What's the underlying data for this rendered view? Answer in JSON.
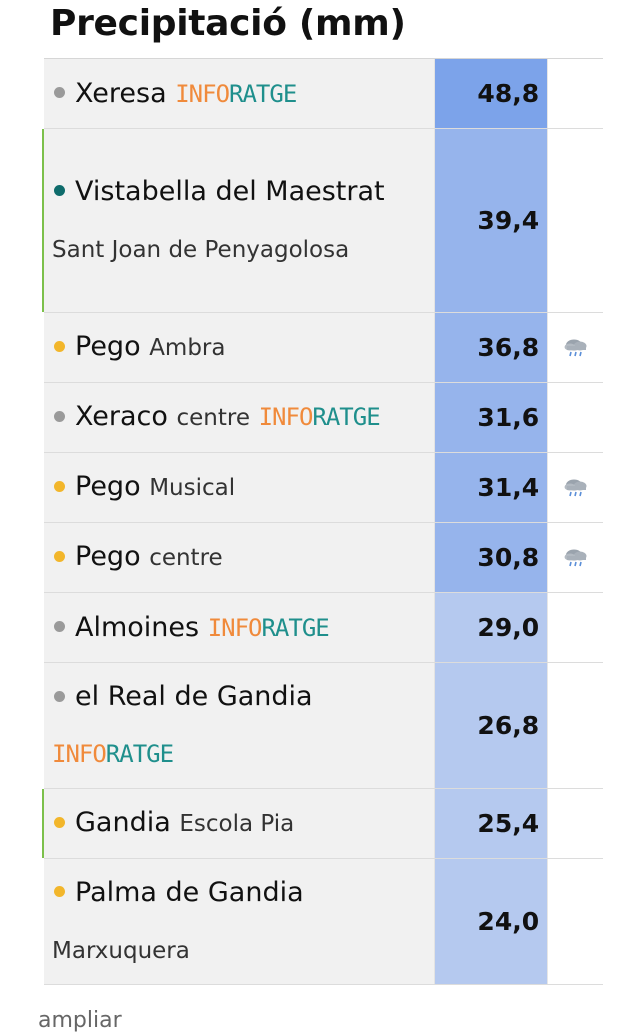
{
  "header": {
    "title": "Precipitació (mm)"
  },
  "brand": {
    "part1": "INFO",
    "part2": "RATGE"
  },
  "colors": {
    "dot_gray": "#9a9a9a",
    "dot_teal": "#0e6b6b",
    "dot_yellow": "#f2b62b",
    "accent_green": "#7cc04b",
    "value_high": "#7ca3ea",
    "value_mid": "#96b4ec",
    "value_low": "#b5c9ef"
  },
  "rows": [
    {
      "name": "Xeresa",
      "sub": "",
      "brand": true,
      "dot": "gray",
      "value": "48,8",
      "icon": "",
      "accent": false,
      "tier": "value_high",
      "lines": 1
    },
    {
      "name": "Vistabella del Maestrat",
      "sub": "Sant Joan de Penyagolosa",
      "brand": false,
      "dot": "teal",
      "value": "39,4",
      "icon": "",
      "accent": true,
      "tier": "value_mid",
      "lines": 3
    },
    {
      "name": "Pego",
      "sub": "Ambra",
      "brand": false,
      "dot": "yellow",
      "value": "36,8",
      "icon": "rain-cloud-icon",
      "accent": false,
      "tier": "value_mid",
      "lines": 1
    },
    {
      "name": "Xeraco",
      "sub": "centre",
      "brand": true,
      "dot": "gray",
      "value": "31,6",
      "icon": "",
      "accent": false,
      "tier": "value_mid",
      "lines": 1
    },
    {
      "name": "Pego",
      "sub": "Musical",
      "brand": false,
      "dot": "yellow",
      "value": "31,4",
      "icon": "rain-cloud-icon",
      "accent": false,
      "tier": "value_mid",
      "lines": 1
    },
    {
      "name": "Pego",
      "sub": "centre",
      "brand": false,
      "dot": "yellow",
      "value": "30,8",
      "icon": "rain-cloud-icon",
      "accent": false,
      "tier": "value_mid",
      "lines": 1
    },
    {
      "name": "Almoines",
      "sub": "",
      "brand": true,
      "dot": "gray",
      "value": "29,0",
      "icon": "",
      "accent": false,
      "tier": "value_low",
      "lines": 1
    },
    {
      "name": "el Real de Gandia",
      "sub": "",
      "brand": true,
      "dot": "gray",
      "value": "26,8",
      "icon": "",
      "accent": false,
      "tier": "value_low",
      "lines": 2
    },
    {
      "name": "Gandia",
      "sub": "Escola Pia",
      "brand": false,
      "dot": "yellow",
      "value": "25,4",
      "icon": "",
      "accent": true,
      "tier": "value_low",
      "lines": 1
    },
    {
      "name": "Palma de Gandia",
      "sub": "Marxuquera",
      "brand": false,
      "dot": "yellow",
      "value": "24,0",
      "icon": "",
      "accent": false,
      "tier": "value_low",
      "lines": 2
    }
  ],
  "footer": {
    "link": "ampliar"
  }
}
